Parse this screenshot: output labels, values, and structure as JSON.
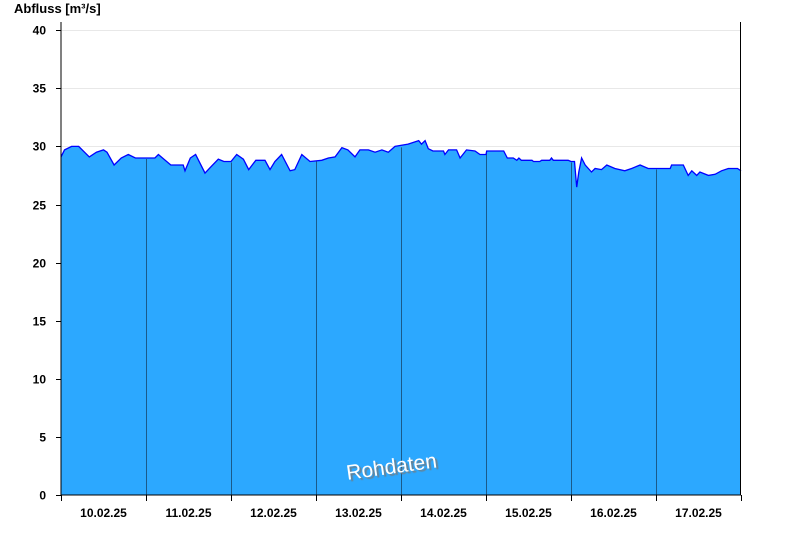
{
  "chart_data": {
    "type": "area",
    "title": "",
    "ylabel": "Abfluss [m³/s]",
    "xlabel": "",
    "ylim": [
      0,
      40
    ],
    "yticks": [
      0,
      5,
      10,
      15,
      20,
      25,
      30,
      35,
      40
    ],
    "xlim": [
      "2025-02-10T00:00",
      "2025-02-18T00:00"
    ],
    "xtick_labels": [
      "10.02.25",
      "11.02.25",
      "12.02.25",
      "13.02.25",
      "14.02.25",
      "15.02.25",
      "16.02.25",
      "17.02.25"
    ],
    "grid": "horizontal",
    "watermark": "Rohdaten",
    "colors": {
      "fill": "#2ca8ff",
      "line": "#0000ff",
      "day_lines": "#1a5a8a",
      "grid": "#e8e8e8"
    },
    "series": [
      {
        "points": [
          [
            "2025-02-10T00:00",
            29.1
          ],
          [
            "2025-02-10T01:00",
            29.7
          ],
          [
            "2025-02-10T03:00",
            30.0
          ],
          [
            "2025-02-10T05:00",
            30.0
          ],
          [
            "2025-02-10T08:00",
            29.1
          ],
          [
            "2025-02-10T10:00",
            29.5
          ],
          [
            "2025-02-10T12:00",
            29.7
          ],
          [
            "2025-02-10T13:00",
            29.5
          ],
          [
            "2025-02-10T15:00",
            28.4
          ],
          [
            "2025-02-10T17:00",
            29.0
          ],
          [
            "2025-02-10T19:00",
            29.3
          ],
          [
            "2025-02-10T21:00",
            29.0
          ],
          [
            "2025-02-11T02:30",
            29.0
          ],
          [
            "2025-02-11T03:30",
            29.3
          ],
          [
            "2025-02-11T07:00",
            28.4
          ],
          [
            "2025-02-11T10:30",
            28.4
          ],
          [
            "2025-02-11T11:00",
            27.9
          ],
          [
            "2025-02-11T12:30",
            29.0
          ],
          [
            "2025-02-11T14:00",
            29.3
          ],
          [
            "2025-02-11T16:40",
            27.7
          ],
          [
            "2025-02-11T18:30",
            28.3
          ],
          [
            "2025-02-11T20:24",
            28.9
          ],
          [
            "2025-02-11T22:00",
            28.7
          ],
          [
            "2025-02-12T00:00",
            28.7
          ],
          [
            "2025-02-12T01:36",
            29.3
          ],
          [
            "2025-02-12T03:30",
            28.9
          ],
          [
            "2025-02-12T05:00",
            28.0
          ],
          [
            "2025-02-12T07:00",
            28.8
          ],
          [
            "2025-02-12T09:36",
            28.8
          ],
          [
            "2025-02-12T11:00",
            28.0
          ],
          [
            "2025-02-12T12:24",
            28.7
          ],
          [
            "2025-02-12T14:18",
            29.3
          ],
          [
            "2025-02-12T16:42",
            27.9
          ],
          [
            "2025-02-12T18:00",
            28.0
          ],
          [
            "2025-02-12T20:00",
            29.3
          ],
          [
            "2025-02-12T22:18",
            28.7
          ],
          [
            "2025-02-13T01:36",
            28.8
          ],
          [
            "2025-02-13T03:30",
            29.0
          ],
          [
            "2025-02-13T05:24",
            29.1
          ],
          [
            "2025-02-13T07:18",
            29.9
          ],
          [
            "2025-02-13T09:00",
            29.7
          ],
          [
            "2025-02-13T11:00",
            29.1
          ],
          [
            "2025-02-13T12:24",
            29.7
          ],
          [
            "2025-02-13T14:48",
            29.7
          ],
          [
            "2025-02-13T16:42",
            29.5
          ],
          [
            "2025-02-13T18:36",
            29.7
          ],
          [
            "2025-02-13T20:24",
            29.5
          ],
          [
            "2025-02-13T22:18",
            30.0
          ],
          [
            "2025-02-14T02:00",
            30.2
          ],
          [
            "2025-02-14T05:00",
            30.5
          ],
          [
            "2025-02-14T05:48",
            30.2
          ],
          [
            "2025-02-14T06:48",
            30.5
          ],
          [
            "2025-02-14T07:42",
            29.8
          ],
          [
            "2025-02-14T09:00",
            29.6
          ],
          [
            "2025-02-14T12:00",
            29.6
          ],
          [
            "2025-02-14T12:24",
            29.3
          ],
          [
            "2025-02-14T13:24",
            29.7
          ],
          [
            "2025-02-14T15:42",
            29.7
          ],
          [
            "2025-02-14T16:42",
            29.0
          ],
          [
            "2025-02-14T18:30",
            29.7
          ],
          [
            "2025-02-14T20:54",
            29.6
          ],
          [
            "2025-02-14T22:18",
            29.3
          ],
          [
            "2025-02-15T00:00",
            29.3
          ],
          [
            "2025-02-15T00:12",
            29.6
          ],
          [
            "2025-02-15T05:00",
            29.6
          ],
          [
            "2025-02-15T06:00",
            29.0
          ],
          [
            "2025-02-15T07:42",
            29.0
          ],
          [
            "2025-02-15T08:42",
            28.8
          ],
          [
            "2025-02-15T09:18",
            29.0
          ],
          [
            "2025-02-15T10:00",
            28.8
          ],
          [
            "2025-02-15T13:00",
            28.8
          ],
          [
            "2025-02-15T13:24",
            28.7
          ],
          [
            "2025-02-15T15:12",
            28.7
          ],
          [
            "2025-02-15T15:42",
            28.8
          ],
          [
            "2025-02-15T18:00",
            28.8
          ],
          [
            "2025-02-15T18:30",
            29.0
          ],
          [
            "2025-02-15T19:00",
            28.8
          ],
          [
            "2025-02-15T23:12",
            28.8
          ],
          [
            "2025-02-16T00:00",
            28.7
          ],
          [
            "2025-02-16T01:00",
            28.7
          ],
          [
            "2025-02-16T01:36",
            26.5
          ],
          [
            "2025-02-16T02:12",
            27.8
          ],
          [
            "2025-02-16T03:00",
            29.0
          ],
          [
            "2025-02-16T04:00",
            28.4
          ],
          [
            "2025-02-16T05:48",
            27.8
          ],
          [
            "2025-02-16T06:48",
            28.1
          ],
          [
            "2025-02-16T08:36",
            28.0
          ],
          [
            "2025-02-16T10:06",
            28.4
          ],
          [
            "2025-02-16T12:24",
            28.1
          ],
          [
            "2025-02-16T15:12",
            27.9
          ],
          [
            "2025-02-16T17:06",
            28.1
          ],
          [
            "2025-02-16T19:30",
            28.4
          ],
          [
            "2025-02-16T21:48",
            28.1
          ],
          [
            "2025-02-16T23:42",
            28.1
          ],
          [
            "2025-02-17T04:00",
            28.1
          ],
          [
            "2025-02-17T04:24",
            28.4
          ],
          [
            "2025-02-17T07:42",
            28.4
          ],
          [
            "2025-02-17T09:06",
            27.5
          ],
          [
            "2025-02-17T10:06",
            27.9
          ],
          [
            "2025-02-17T11:30",
            27.5
          ],
          [
            "2025-02-17T12:24",
            27.8
          ],
          [
            "2025-02-17T14:48",
            27.5
          ],
          [
            "2025-02-17T16:42",
            27.6
          ],
          [
            "2025-02-17T18:30",
            27.9
          ],
          [
            "2025-02-17T20:24",
            28.1
          ],
          [
            "2025-02-17T23:00",
            28.1
          ],
          [
            "2025-02-18T00:00",
            27.9
          ]
        ]
      }
    ]
  }
}
